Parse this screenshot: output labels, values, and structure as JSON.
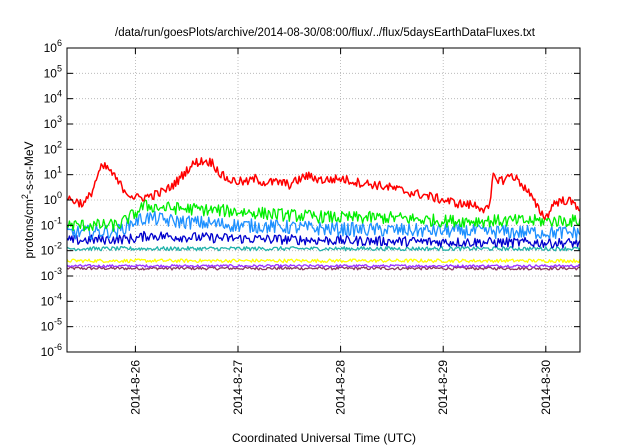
{
  "chart_data": {
    "type": "line",
    "title": "/data/run/goesPlots/archive/2014-08-30/08:00/flux/../flux/5daysEarthDataFluxes.txt",
    "xlabel": "Coordinated Universal Time (UTC)",
    "ylabel": "protons/cm²-s-sr-MeV",
    "yscale": "log",
    "ylim": [
      1e-06,
      1000000.0
    ],
    "xlim": [
      "2014-08-25 08:00",
      "2014-08-30 08:00"
    ],
    "x_ticks": [
      "2014-8-26",
      "2014-8-27",
      "2014-8-28",
      "2014-8-29",
      "2014-8-30"
    ],
    "y_ticks": [
      {
        "value": 1e-06,
        "base": "10",
        "exp": "-6"
      },
      {
        "value": 1e-05,
        "base": "10",
        "exp": "-5"
      },
      {
        "value": 0.0001,
        "base": "10",
        "exp": "-4"
      },
      {
        "value": 0.001,
        "base": "10",
        "exp": "-3"
      },
      {
        "value": 0.01,
        "base": "10",
        "exp": "-2"
      },
      {
        "value": 0.1,
        "base": "10",
        "exp": "-1"
      },
      {
        "value": 1,
        "base": "10",
        "exp": "0"
      },
      {
        "value": 10,
        "base": "10",
        "exp": "1"
      },
      {
        "value": 100,
        "base": "10",
        "exp": "2"
      },
      {
        "value": 1000,
        "base": "10",
        "exp": "3"
      },
      {
        "value": 10000,
        "base": "10",
        "exp": "4"
      },
      {
        "value": 100000,
        "base": "10",
        "exp": "5"
      },
      {
        "value": 1000000,
        "base": "10",
        "exp": "6"
      }
    ],
    "grid": true,
    "series": [
      {
        "color": "#ff0000",
        "noise": 0.18,
        "points": [
          [
            "2014-08-25 08:00",
            1.2
          ],
          [
            "2014-08-25 10:00",
            0.9
          ],
          [
            "2014-08-25 12:00",
            0.7
          ],
          [
            "2014-08-25 13:00",
            1.2
          ],
          [
            "2014-08-25 14:00",
            2.5
          ],
          [
            "2014-08-25 15:00",
            8
          ],
          [
            "2014-08-25 16:00",
            18
          ],
          [
            "2014-08-25 17:00",
            20
          ],
          [
            "2014-08-25 18:00",
            15
          ],
          [
            "2014-08-25 20:00",
            5
          ],
          [
            "2014-08-25 22:00",
            2
          ],
          [
            "2014-08-26 00:00",
            1.2
          ],
          [
            "2014-08-26 02:00",
            1.3
          ],
          [
            "2014-08-26 04:00",
            1.5
          ],
          [
            "2014-08-26 06:00",
            2
          ],
          [
            "2014-08-26 08:00",
            3
          ],
          [
            "2014-08-26 10:00",
            6
          ],
          [
            "2014-08-26 12:00",
            15
          ],
          [
            "2014-08-26 14:00",
            30
          ],
          [
            "2014-08-26 16:00",
            35
          ],
          [
            "2014-08-26 18:00",
            30
          ],
          [
            "2014-08-26 20:00",
            10
          ],
          [
            "2014-08-26 22:00",
            6
          ],
          [
            "2014-08-27 02:00",
            5
          ],
          [
            "2014-08-27 04:00",
            7
          ],
          [
            "2014-08-27 06:00",
            5
          ],
          [
            "2014-08-27 10:00",
            5
          ],
          [
            "2014-08-27 12:00",
            4
          ],
          [
            "2014-08-27 16:00",
            9
          ],
          [
            "2014-08-27 20:00",
            6
          ],
          [
            "2014-08-28 00:00",
            7
          ],
          [
            "2014-08-28 04:00",
            5
          ],
          [
            "2014-08-28 08:00",
            4
          ],
          [
            "2014-08-28 12:00",
            3
          ],
          [
            "2014-08-28 16:00",
            2
          ],
          [
            "2014-08-28 20:00",
            1.5
          ],
          [
            "2014-08-29 00:00",
            1
          ],
          [
            "2014-08-29 04:00",
            0.7
          ],
          [
            "2014-08-29 08:00",
            0.6
          ],
          [
            "2014-08-29 10:00",
            0.4
          ],
          [
            "2014-08-29 11:00",
            0.5
          ],
          [
            "2014-08-29 11:30",
            8
          ],
          [
            "2014-08-29 14:00",
            6
          ],
          [
            "2014-08-29 16:00",
            10
          ],
          [
            "2014-08-29 18:00",
            5
          ],
          [
            "2014-08-29 20:00",
            2
          ],
          [
            "2014-08-29 22:00",
            0.5
          ],
          [
            "2014-08-30 00:00",
            0.2
          ],
          [
            "2014-08-30 02:00",
            0.8
          ],
          [
            "2014-08-30 05:00",
            1
          ],
          [
            "2014-08-30 08:00",
            0.5
          ]
        ]
      },
      {
        "color": "#00ee00",
        "noise": 0.25,
        "points": [
          [
            "2014-08-25 08:00",
            0.1
          ],
          [
            "2014-08-25 20:00",
            0.1
          ],
          [
            "2014-08-26 00:00",
            0.3
          ],
          [
            "2014-08-26 02:00",
            0.6
          ],
          [
            "2014-08-26 06:00",
            0.5
          ],
          [
            "2014-08-26 12:00",
            0.45
          ],
          [
            "2014-08-27 00:00",
            0.35
          ],
          [
            "2014-08-27 12:00",
            0.25
          ],
          [
            "2014-08-28 00:00",
            0.2
          ],
          [
            "2014-08-28 12:00",
            0.2
          ],
          [
            "2014-08-29 00:00",
            0.15
          ],
          [
            "2014-08-29 12:00",
            0.15
          ],
          [
            "2014-08-30 08:00",
            0.15
          ]
        ]
      },
      {
        "color": "#1e90ff",
        "noise": 0.28,
        "points": [
          [
            "2014-08-25 08:00",
            0.05
          ],
          [
            "2014-08-25 20:00",
            0.06
          ],
          [
            "2014-08-26 00:00",
            0.15
          ],
          [
            "2014-08-26 03:00",
            0.2
          ],
          [
            "2014-08-26 08:00",
            0.15
          ],
          [
            "2014-08-27 00:00",
            0.1
          ],
          [
            "2014-08-28 00:00",
            0.07
          ],
          [
            "2014-08-29 00:00",
            0.06
          ],
          [
            "2014-08-30 08:00",
            0.05
          ]
        ]
      },
      {
        "color": "#0000cd",
        "noise": 0.2,
        "points": [
          [
            "2014-08-25 08:00",
            0.025
          ],
          [
            "2014-08-26 00:00",
            0.03
          ],
          [
            "2014-08-26 03:00",
            0.04
          ],
          [
            "2014-08-26 10:00",
            0.035
          ],
          [
            "2014-08-27 00:00",
            0.03
          ],
          [
            "2014-08-28 00:00",
            0.025
          ],
          [
            "2014-08-29 00:00",
            0.022
          ],
          [
            "2014-08-30 08:00",
            0.02
          ]
        ]
      },
      {
        "color": "#20b2aa",
        "noise": 0.08,
        "points": [
          [
            "2014-08-25 08:00",
            0.012
          ],
          [
            "2014-08-30 08:00",
            0.012
          ]
        ]
      },
      {
        "color": "#ffff00",
        "noise": 0.07,
        "points": [
          [
            "2014-08-25 08:00",
            0.004
          ],
          [
            "2014-08-30 08:00",
            0.004
          ]
        ]
      },
      {
        "color": "#9b30ff",
        "noise": 0.05,
        "points": [
          [
            "2014-08-25 08:00",
            0.0025
          ],
          [
            "2014-08-30 08:00",
            0.0025
          ]
        ]
      },
      {
        "color": "#8b3a62",
        "noise": 0.06,
        "points": [
          [
            "2014-08-25 08:00",
            0.002
          ],
          [
            "2014-08-30 08:00",
            0.002
          ]
        ]
      }
    ]
  }
}
